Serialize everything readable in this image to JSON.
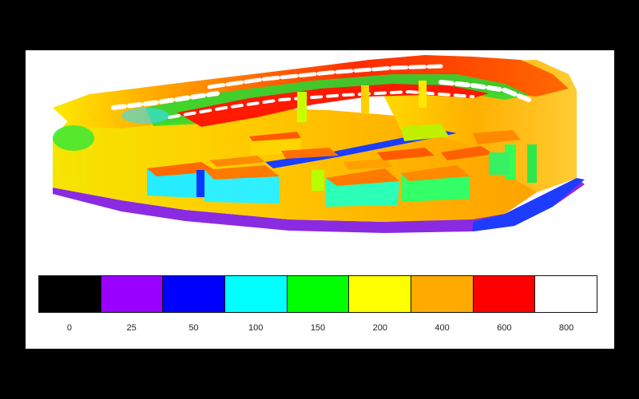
{
  "legend": {
    "levels": [
      {
        "label": "0",
        "color": "#000000"
      },
      {
        "label": "25",
        "color": "#9900ff"
      },
      {
        "label": "50",
        "color": "#0000ff"
      },
      {
        "label": "100",
        "color": "#00ffff"
      },
      {
        "label": "150",
        "color": "#00ff00"
      },
      {
        "label": "200",
        "color": "#ffff00"
      },
      {
        "label": "400",
        "color": "#ffaa00"
      },
      {
        "label": "600",
        "color": "#ff0000"
      },
      {
        "label": "800",
        "color": "#ffffff"
      }
    ]
  }
}
